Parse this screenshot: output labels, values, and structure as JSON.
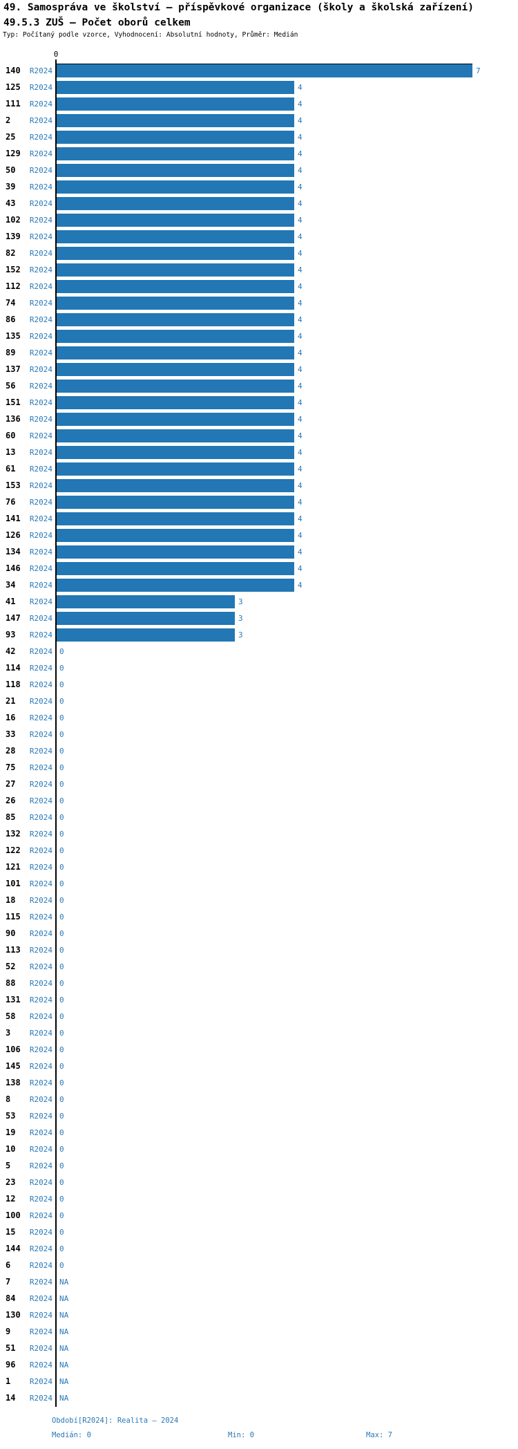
{
  "header": {
    "title": "49. Samospráva ve školství – příspěvkové organizace (školy a školská zařízení)",
    "subtitle": "49.5.3 ZUŠ – Počet oborů celkem",
    "meta": "Typ: Počítaný podle vzorce, Vyhodnocení: Absolutní hodnoty, Průměr: Medián"
  },
  "chart_data": {
    "type": "bar",
    "orientation": "horizontal",
    "series_label": "R2024",
    "axis": {
      "zero_label": "0",
      "xlim": [
        0,
        7
      ],
      "grid": false
    },
    "na_label": "NA",
    "categories": [
      "140",
      "125",
      "111",
      "2",
      "25",
      "129",
      "50",
      "39",
      "43",
      "102",
      "139",
      "82",
      "152",
      "112",
      "74",
      "86",
      "135",
      "89",
      "137",
      "56",
      "151",
      "136",
      "60",
      "13",
      "61",
      "153",
      "76",
      "141",
      "126",
      "134",
      "146",
      "34",
      "41",
      "147",
      "93",
      "42",
      "114",
      "118",
      "21",
      "16",
      "33",
      "28",
      "75",
      "27",
      "26",
      "85",
      "132",
      "122",
      "121",
      "101",
      "18",
      "115",
      "90",
      "113",
      "52",
      "88",
      "131",
      "58",
      "3",
      "106",
      "145",
      "138",
      "8",
      "53",
      "19",
      "10",
      "5",
      "23",
      "12",
      "100",
      "15",
      "144",
      "6",
      "7",
      "84",
      "130",
      "9",
      "51",
      "96",
      "1",
      "14"
    ],
    "values": [
      7,
      4,
      4,
      4,
      4,
      4,
      4,
      4,
      4,
      4,
      4,
      4,
      4,
      4,
      4,
      4,
      4,
      4,
      4,
      4,
      4,
      4,
      4,
      4,
      4,
      4,
      4,
      4,
      4,
      4,
      4,
      4,
      3,
      3,
      3,
      0,
      0,
      0,
      0,
      0,
      0,
      0,
      0,
      0,
      0,
      0,
      0,
      0,
      0,
      0,
      0,
      0,
      0,
      0,
      0,
      0,
      0,
      0,
      0,
      0,
      0,
      0,
      0,
      0,
      0,
      0,
      0,
      0,
      0,
      0,
      0,
      0,
      0,
      null,
      null,
      null,
      null,
      null,
      null,
      null,
      null
    ]
  },
  "footer": {
    "period": "Období[R2024]: Realita – 2024",
    "median": "Medián: 0",
    "min": "Min: 0",
    "max": "Max: 7"
  },
  "colors": {
    "bar": "#2277b4",
    "text_blue": "#2878b8",
    "axis": "#000000"
  }
}
